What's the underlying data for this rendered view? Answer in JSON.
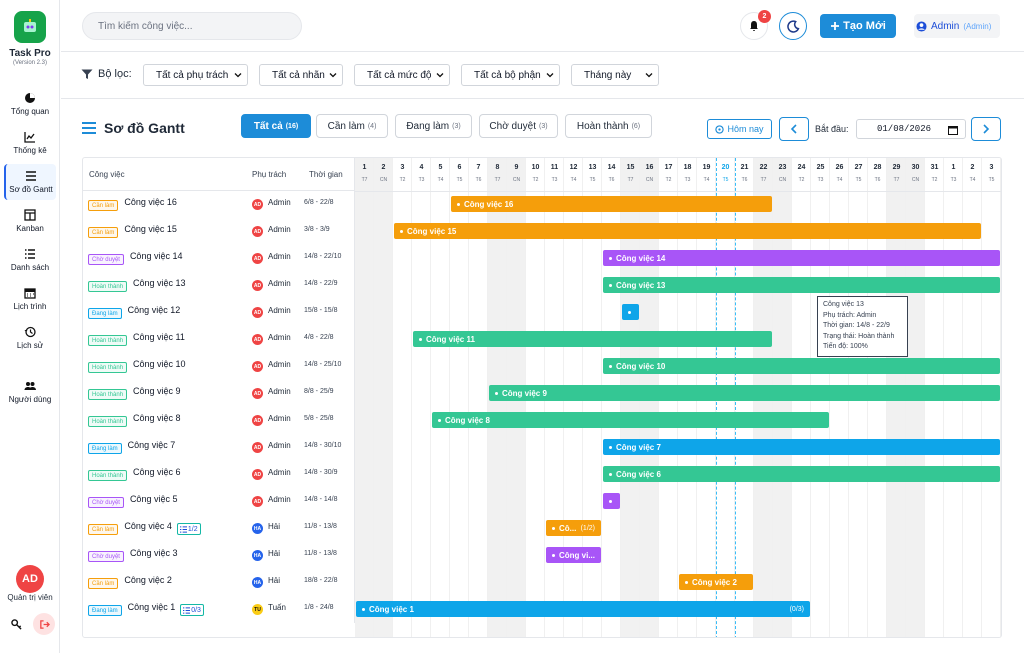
{
  "app": {
    "name": "Task Pro",
    "version": "(Version 2.3)"
  },
  "sidebar": {
    "items": [
      {
        "label": "Tổng quan",
        "icon": "pie-chart-icon"
      },
      {
        "label": "Thống kê",
        "icon": "line-chart-icon"
      },
      {
        "label": "Sơ đồ Gantt",
        "icon": "bars-icon",
        "active": true
      },
      {
        "label": "Kanban",
        "icon": "columns-icon"
      },
      {
        "label": "Danh sách",
        "icon": "list-icon"
      },
      {
        "label": "Lịch trình",
        "icon": "calendar-icon"
      },
      {
        "label": "Lịch sử",
        "icon": "history-icon"
      },
      {
        "label": "Người dùng",
        "icon": "users-icon"
      }
    ],
    "user_initials": "AD",
    "user_label": "Quản trị viên"
  },
  "header": {
    "search_placeholder": "Tìm kiếm công việc...",
    "notif_count": "2",
    "new_label": "Tạo Mới",
    "user_name": "Admin",
    "user_role": "(Admin)"
  },
  "filters": {
    "label": "Bộ lọc:",
    "selects": [
      "Tất cả phụ trách",
      "Tất cả nhãn",
      "Tất cả mức độ",
      "Tất cả bộ phận",
      "Tháng này"
    ]
  },
  "gantt": {
    "title": "Sơ đồ Gantt",
    "tabs": [
      {
        "label": "Tất cả",
        "count": "(16)"
      },
      {
        "label": "Cần làm",
        "count": "(4)"
      },
      {
        "label": "Đang làm",
        "count": "(3)"
      },
      {
        "label": "Chờ duyệt",
        "count": "(3)"
      },
      {
        "label": "Hoàn thành",
        "count": "(6)"
      }
    ],
    "today_label": "Hôm nay",
    "start_label": "Bắt đầu:",
    "start_date": "01/08/2026",
    "columns": {
      "task": "Công việc",
      "owner": "Phụ trách",
      "time": "Thời gian"
    },
    "days": [
      {
        "d": "1",
        "w": "T7"
      },
      {
        "d": "2",
        "w": "CN"
      },
      {
        "d": "3",
        "w": "T2"
      },
      {
        "d": "4",
        "w": "T3"
      },
      {
        "d": "5",
        "w": "T4"
      },
      {
        "d": "6",
        "w": "T5"
      },
      {
        "d": "7",
        "w": "T6"
      },
      {
        "d": "8",
        "w": "T7"
      },
      {
        "d": "9",
        "w": "CN"
      },
      {
        "d": "10",
        "w": "T2"
      },
      {
        "d": "11",
        "w": "T3"
      },
      {
        "d": "12",
        "w": "T4"
      },
      {
        "d": "13",
        "w": "T5"
      },
      {
        "d": "14",
        "w": "T6"
      },
      {
        "d": "15",
        "w": "T7"
      },
      {
        "d": "16",
        "w": "CN"
      },
      {
        "d": "17",
        "w": "T2"
      },
      {
        "d": "18",
        "w": "T3"
      },
      {
        "d": "19",
        "w": "T4"
      },
      {
        "d": "20",
        "w": "T5"
      },
      {
        "d": "21",
        "w": "T6"
      },
      {
        "d": "22",
        "w": "T7"
      },
      {
        "d": "23",
        "w": "CN"
      },
      {
        "d": "24",
        "w": "T2"
      },
      {
        "d": "25",
        "w": "T3"
      },
      {
        "d": "26",
        "w": "T4"
      },
      {
        "d": "27",
        "w": "T5"
      },
      {
        "d": "28",
        "w": "T6"
      },
      {
        "d": "29",
        "w": "T7"
      },
      {
        "d": "30",
        "w": "CN"
      },
      {
        "d": "31",
        "w": "T2"
      },
      {
        "d": "1",
        "w": "T3"
      },
      {
        "d": "2",
        "w": "T4"
      },
      {
        "d": "3",
        "w": "T5"
      }
    ],
    "status_colors": {
      "Cần làm": "#f59e0b",
      "Đang làm": "#0ea5e9",
      "Chờ duyệt": "#a855f7",
      "Hoàn thành": "#34c794"
    },
    "tasks": [
      {
        "name": "Công việc 16",
        "status": "Cần làm",
        "owner": "Admin",
        "avatar": "AD",
        "date": "6/8 - 22/8",
        "start": 5,
        "end": 22,
        "bar": "Công việc 16"
      },
      {
        "name": "Công việc 15",
        "status": "Cần làm",
        "owner": "Admin",
        "avatar": "AD",
        "date": "3/8 - 3/9",
        "start": 2,
        "end": 33,
        "bar": "Công việc 15"
      },
      {
        "name": "Công việc 14",
        "status": "Chờ duyệt",
        "owner": "Admin",
        "avatar": "AD",
        "date": "14/8 - 22/10",
        "start": 13,
        "end": 34,
        "bar": "Công việc 14"
      },
      {
        "name": "Công việc 13",
        "status": "Hoàn thành",
        "owner": "Admin",
        "avatar": "AD",
        "date": "14/8 - 22/9",
        "start": 13,
        "end": 34,
        "bar": "Công việc 13"
      },
      {
        "name": "Công việc 12",
        "status": "Đang làm",
        "owner": "Admin",
        "avatar": "AD",
        "date": "15/8 - 15/8",
        "start": 14,
        "end": 15,
        "bar": ""
      },
      {
        "name": "Công việc 11",
        "status": "Hoàn thành",
        "owner": "Admin",
        "avatar": "AD",
        "date": "4/8 - 22/8",
        "start": 3,
        "end": 22,
        "bar": "Công việc 11"
      },
      {
        "name": "Công việc 10",
        "status": "Hoàn thành",
        "owner": "Admin",
        "avatar": "AD",
        "date": "14/8 - 25/10",
        "start": 13,
        "end": 34,
        "bar": "Công việc 10"
      },
      {
        "name": "Công việc 9",
        "status": "Hoàn thành",
        "owner": "Admin",
        "avatar": "AD",
        "date": "8/8 - 25/9",
        "start": 7,
        "end": 34,
        "bar": "Công việc 9"
      },
      {
        "name": "Công việc 8",
        "status": "Hoàn thành",
        "owner": "Admin",
        "avatar": "AD",
        "date": "5/8 - 25/8",
        "start": 4,
        "end": 25,
        "bar": "Công việc 8"
      },
      {
        "name": "Công việc 7",
        "status": "Đang làm",
        "owner": "Admin",
        "avatar": "AD",
        "date": "14/8 - 30/10",
        "start": 13,
        "end": 34,
        "bar": "Công việc 7"
      },
      {
        "name": "Công việc 6",
        "status": "Hoàn thành",
        "owner": "Admin",
        "avatar": "AD",
        "date": "14/8 - 30/9",
        "start": 13,
        "end": 34,
        "bar": "Công việc 6"
      },
      {
        "name": "Công việc 5",
        "status": "Chờ duyệt",
        "owner": "Admin",
        "avatar": "AD",
        "date": "14/8 - 14/8",
        "start": 13,
        "end": 14,
        "bar": ""
      },
      {
        "name": "Công việc 4",
        "status": "Cần làm",
        "owner": "Hải",
        "avatar": "HA",
        "date": "11/8 - 13/8",
        "start": 10,
        "end": 13,
        "bar": "Cô...",
        "prog": "(1/2)",
        "sub": "1/2"
      },
      {
        "name": "Công việc 3",
        "status": "Chờ duyệt",
        "owner": "Hải",
        "avatar": "HA",
        "date": "11/8 - 13/8",
        "start": 10,
        "end": 13,
        "bar": "Công vi..."
      },
      {
        "name": "Công việc 2",
        "status": "Cần làm",
        "owner": "Hải",
        "avatar": "HA",
        "date": "18/8 - 22/8",
        "start": 17,
        "end": 21,
        "bar": "Công việc 2"
      },
      {
        "name": "Công việc 1",
        "status": "Đang làm",
        "owner": "Tuấn",
        "avatar": "TU",
        "date": "1/8 - 24/8",
        "start": 0,
        "end": 24,
        "bar": "Công việc 1",
        "prog": "(0/3)",
        "sub": "0/3"
      }
    ],
    "tooltip": {
      "lines": [
        "Công việc 13",
        "Phụ trách: Admin",
        "Thời gian: 14/8 - 22/9",
        "Trạng thái: Hoàn thành",
        "Tiến độ: 100%"
      ]
    }
  }
}
